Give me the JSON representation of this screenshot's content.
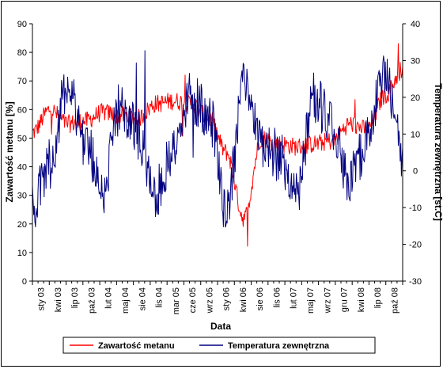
{
  "chart_data": {
    "type": "line",
    "title": "",
    "xlabel": "Data",
    "ylabel": "Zawartość metanu [%]",
    "y2label": "Temperatura zewnętrzna [st.C]",
    "ylim": [
      0,
      90
    ],
    "y2lim": [
      -30,
      40
    ],
    "yticks": [
      0,
      10,
      20,
      30,
      40,
      50,
      60,
      70,
      80,
      90
    ],
    "y2ticks": [
      -30,
      -20,
      -10,
      0,
      10,
      20,
      30,
      40
    ],
    "grid": false,
    "legend_position": "bottom",
    "categories": [
      "sty 03",
      "kwi 03",
      "lip 03",
      "paź 03",
      "lut 04",
      "maj 04",
      "sie 04",
      "lis 04",
      "mar 05",
      "cze 05",
      "wrz 05",
      "sty 06",
      "kwi 06",
      "sie 06",
      "lis 06",
      "lut 07",
      "maj 07",
      "wrz 07",
      "gru 07",
      "kwi 08",
      "lip 08",
      "paź 08"
    ],
    "series": [
      {
        "name": "Zawartość metanu",
        "axis": "left",
        "color": "#ff0000",
        "values": [
          52,
          60,
          55,
          56,
          59,
          58,
          57,
          62,
          63,
          62,
          57,
          45,
          22,
          50,
          48,
          47,
          48,
          49,
          55,
          53,
          65,
          74
        ]
      },
      {
        "name": "Temperatura zewnętrzna",
        "axis": "right",
        "color": "#000080",
        "values": [
          -10,
          2,
          24,
          8,
          -5,
          18,
          10,
          -6,
          6,
          20,
          16,
          -12,
          25,
          8,
          4,
          -6,
          20,
          12,
          -2,
          8,
          28,
          5
        ]
      }
    ]
  }
}
